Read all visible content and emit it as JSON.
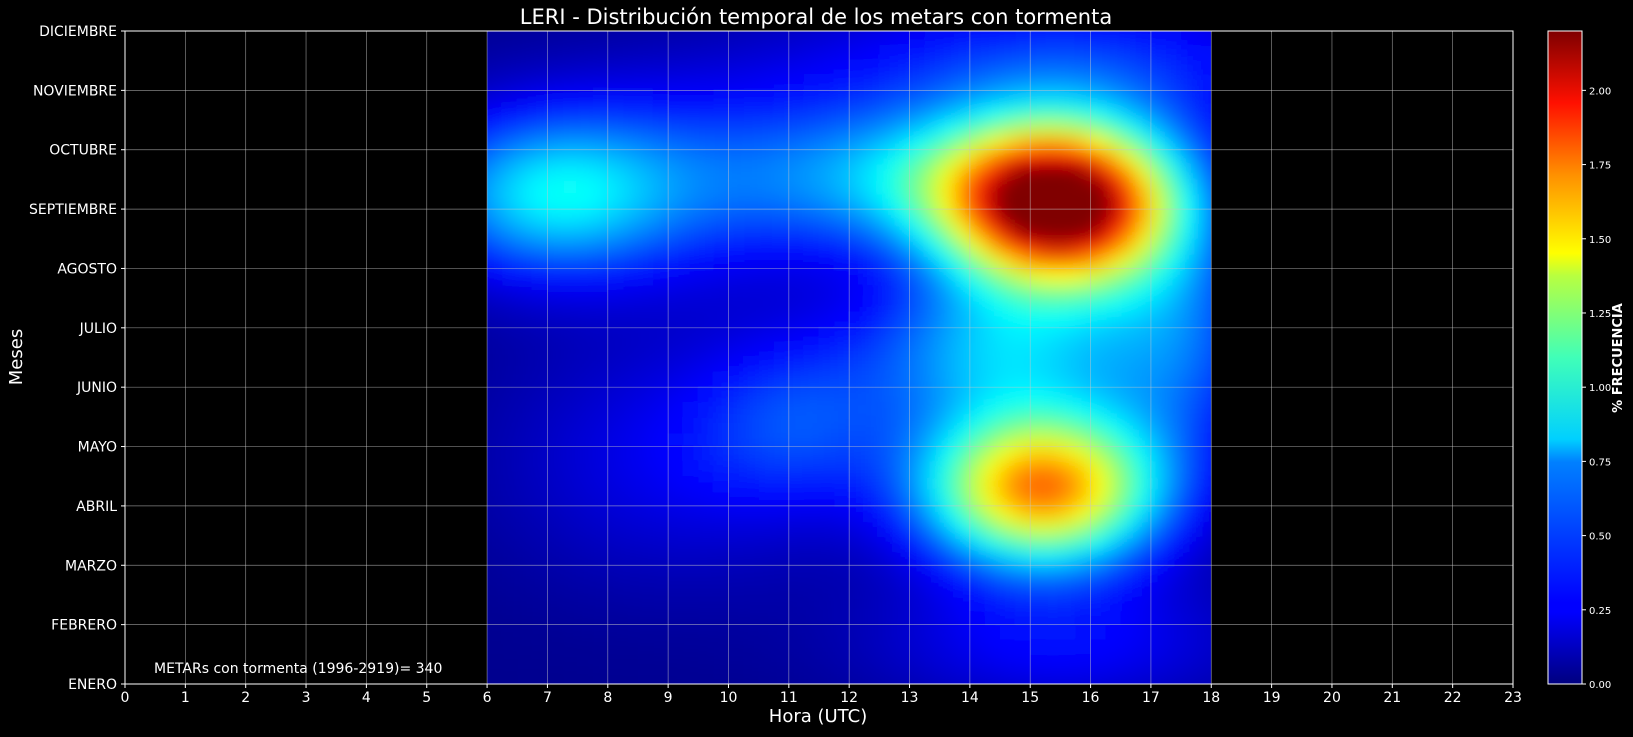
{
  "chart_data": {
    "type": "heatmap",
    "title": "LERI - Distribución temporal de los metars con tormenta",
    "xlabel": "Hora (UTC)",
    "ylabel": "Meses",
    "x_ticks": [
      "0",
      "1",
      "2",
      "3",
      "4",
      "5",
      "6",
      "7",
      "8",
      "9",
      "10",
      "11",
      "12",
      "13",
      "14",
      "15",
      "16",
      "17",
      "18",
      "19",
      "20",
      "21",
      "22",
      "23"
    ],
    "xlim": [
      0,
      23
    ],
    "y_ticks": [
      "ENERO",
      "FEBRERO",
      "MARZO",
      "ABRIL",
      "MAYO",
      "JUNIO",
      "JULIO",
      "AGOSTO",
      "SEPTIEMBRE",
      "OCTUBRE",
      "NOVIEMBRE",
      "DICIEMBRE"
    ],
    "data_x_range": [
      6,
      18
    ],
    "colorbar": {
      "label": "% FRECUENCIA",
      "ticks": [
        "0.00",
        "0.25",
        "0.50",
        "0.75",
        "1.00",
        "1.25",
        "1.50",
        "1.75",
        "2.00"
      ],
      "range": [
        0,
        2.2
      ],
      "colormap": "jet"
    },
    "hotspots": [
      {
        "hour": 15.5,
        "month": "SEPTIEMBRE",
        "value": 2.2
      },
      {
        "hour": 15.2,
        "month": "ABRIL",
        "value": 1.7
      }
    ],
    "grid": true,
    "annotation": "METARs con tormenta (1996-2919)= 340",
    "colors": {
      "background": "#000000",
      "grid": "#c8c8c8",
      "text": "#ffffff"
    }
  }
}
